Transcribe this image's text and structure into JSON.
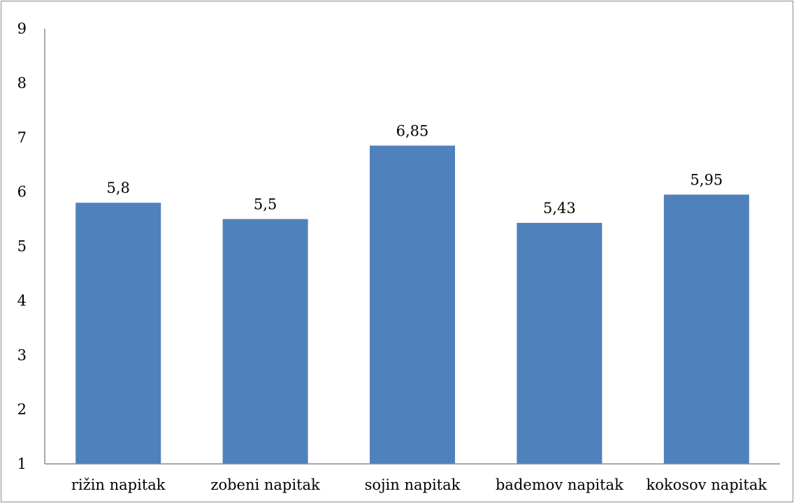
{
  "chart_data": {
    "type": "bar",
    "title": "",
    "xlabel": "",
    "ylabel": "",
    "categories": [
      "rižin napitak",
      "zobeni napitak",
      "sojin napitak",
      "bademov napitak",
      "kokosov napitak"
    ],
    "values": [
      5.8,
      5.5,
      6.85,
      5.43,
      5.95
    ],
    "value_labels": [
      "5,8",
      "5,5",
      "6,85",
      "5,43",
      "5,95"
    ],
    "ylim": [
      1,
      9
    ],
    "yticks": [
      "1",
      "2",
      "3",
      "4",
      "5",
      "6",
      "7",
      "8",
      "9"
    ],
    "grid": false,
    "legend": "none",
    "bar_color": "#4f81bd",
    "axis_color": "#8c8c8c"
  }
}
